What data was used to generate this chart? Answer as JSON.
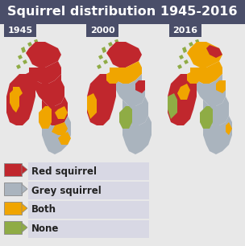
{
  "title": "Squirrel distribution 1945-2016",
  "title_bg": "#4a4e69",
  "title_color": "#ffffff",
  "title_fontsize": 11.5,
  "bg_color": "#e8e8e8",
  "years": [
    "1945",
    "2000",
    "2016"
  ],
  "year_bg": "#4a4e69",
  "year_color": "#ffffff",
  "legend_items": [
    {
      "label": "Red squirrel",
      "color": "#c0272d"
    },
    {
      "label": "Grey squirrel",
      "color": "#aab4be"
    },
    {
      "label": "Both",
      "color": "#f0a500"
    },
    {
      "label": "None",
      "color": "#8fac45"
    }
  ],
  "legend_bg": "#d8d8e4",
  "legend_border": "#9090a8",
  "red": "#c0272d",
  "grey": "#aab4be",
  "orange": "#f0a500",
  "green": "#8fac45",
  "white": "#ffffff"
}
